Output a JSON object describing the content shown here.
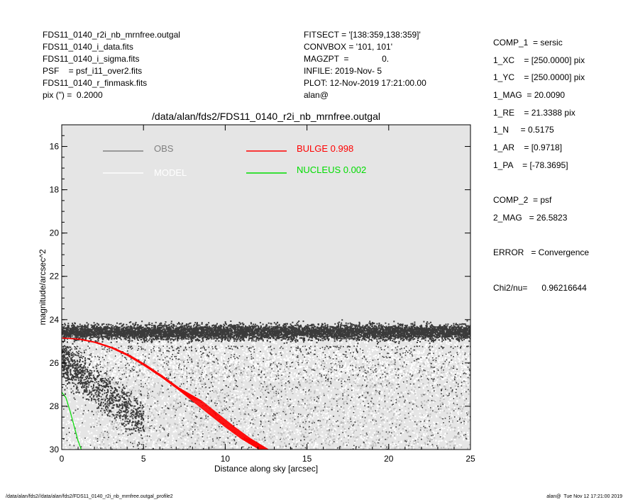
{
  "header_left": [
    "FDS11_0140_r2i_nb_mrnfree.outgal",
    "FDS11_0140_i_data.fits",
    "FDS11_0140_i_sigma.fits",
    "PSF    = psf_i11_over2.fits",
    "FDS11_0140_r_finmask.fits",
    "pix (\") =  0.2000"
  ],
  "header_mid": [
    "FITSECT = '[138:359,138:359]'",
    "CONVBOX = '101, 101'",
    "MAGZPT  =              0.",
    "INFILE: 2019-Nov- 5",
    "PLOT: 12-Nov-2019 17:21:00.00",
    "alan@"
  ],
  "header_right": [
    "COMP_1  = sersic",
    "1_XC    = [250.0000] pix",
    "1_YC    = [250.0000] pix",
    "1_MAG  = 20.0090",
    "1_RE    = 21.3388 pix",
    "1_N     = 0.5175",
    "1_AR    = [0.9718]",
    "1_PA    = [-78.3695]",
    "",
    "COMP_2  = psf",
    "2_MAG   = 26.5823",
    "",
    "ERROR   = Convergence",
    "",
    "Chi2/nu=      0.96216644"
  ],
  "footer_left": "/data/alan/fds2//data/alan/fds2/FDS11_0140_r2i_nb_mrnfree.outgal_profile2",
  "footer_right": "alan@  Tue Nov 12 17:21:00 2019",
  "colors": {
    "plot_bg": "#e5e5e5",
    "obs": "#808080",
    "obs_points": "#3a3a3a",
    "model": "#ffffff",
    "bulge": "#ff0000",
    "nucleus": "#00dd00"
  },
  "chart_data": {
    "type": "scatter",
    "title": "/data/alan/fds2/FDS11_0140_r2i_nb_mrnfree.outgal",
    "xlabel": "Distance along sky [arcsec]",
    "ylabel": "magnitude/arcsec^2",
    "xlim": [
      0,
      25
    ],
    "ylim": [
      30,
      15
    ],
    "y_inverted": true,
    "xticks": [
      0,
      5,
      10,
      15,
      20,
      25
    ],
    "yticks": [
      16,
      18,
      20,
      22,
      24,
      26,
      28,
      30
    ],
    "legend": [
      {
        "label": "OBS",
        "color": "#808080"
      },
      {
        "label": "MODEL",
        "color": "#ffffff"
      },
      {
        "label": "BULGE  0.998",
        "color": "#ff0000"
      },
      {
        "label": "NUCLEUS  0.002",
        "color": "#00dd00"
      }
    ],
    "legend_placement": "top",
    "series": [
      {
        "name": "OBS",
        "kind": "points",
        "description_values": {
          "main_band_mag": [
            23.8,
            25.4
          ],
          "x_range": [
            0,
            25
          ],
          "inner_tail_mag": [
            25.2,
            30
          ]
        }
      },
      {
        "name": "MODEL",
        "kind": "points",
        "description_values": {
          "mag_range": [
            24.5,
            30
          ],
          "x_range": [
            0,
            25
          ]
        }
      },
      {
        "name": "BULGE",
        "kind": "line",
        "x": [
          0,
          1,
          2,
          3,
          4,
          5,
          6,
          7,
          8,
          9,
          10,
          11,
          12.1
        ],
        "y": [
          24.85,
          24.9,
          25.05,
          25.3,
          25.65,
          26.1,
          26.6,
          27.15,
          27.75,
          28.35,
          28.95,
          29.5,
          30
        ]
      },
      {
        "name": "NUCLEUS",
        "kind": "line",
        "x": [
          0,
          0.25,
          0.5,
          0.75,
          1.0,
          1.2
        ],
        "y": [
          27.35,
          27.6,
          28.2,
          28.9,
          29.6,
          30
        ]
      }
    ]
  }
}
